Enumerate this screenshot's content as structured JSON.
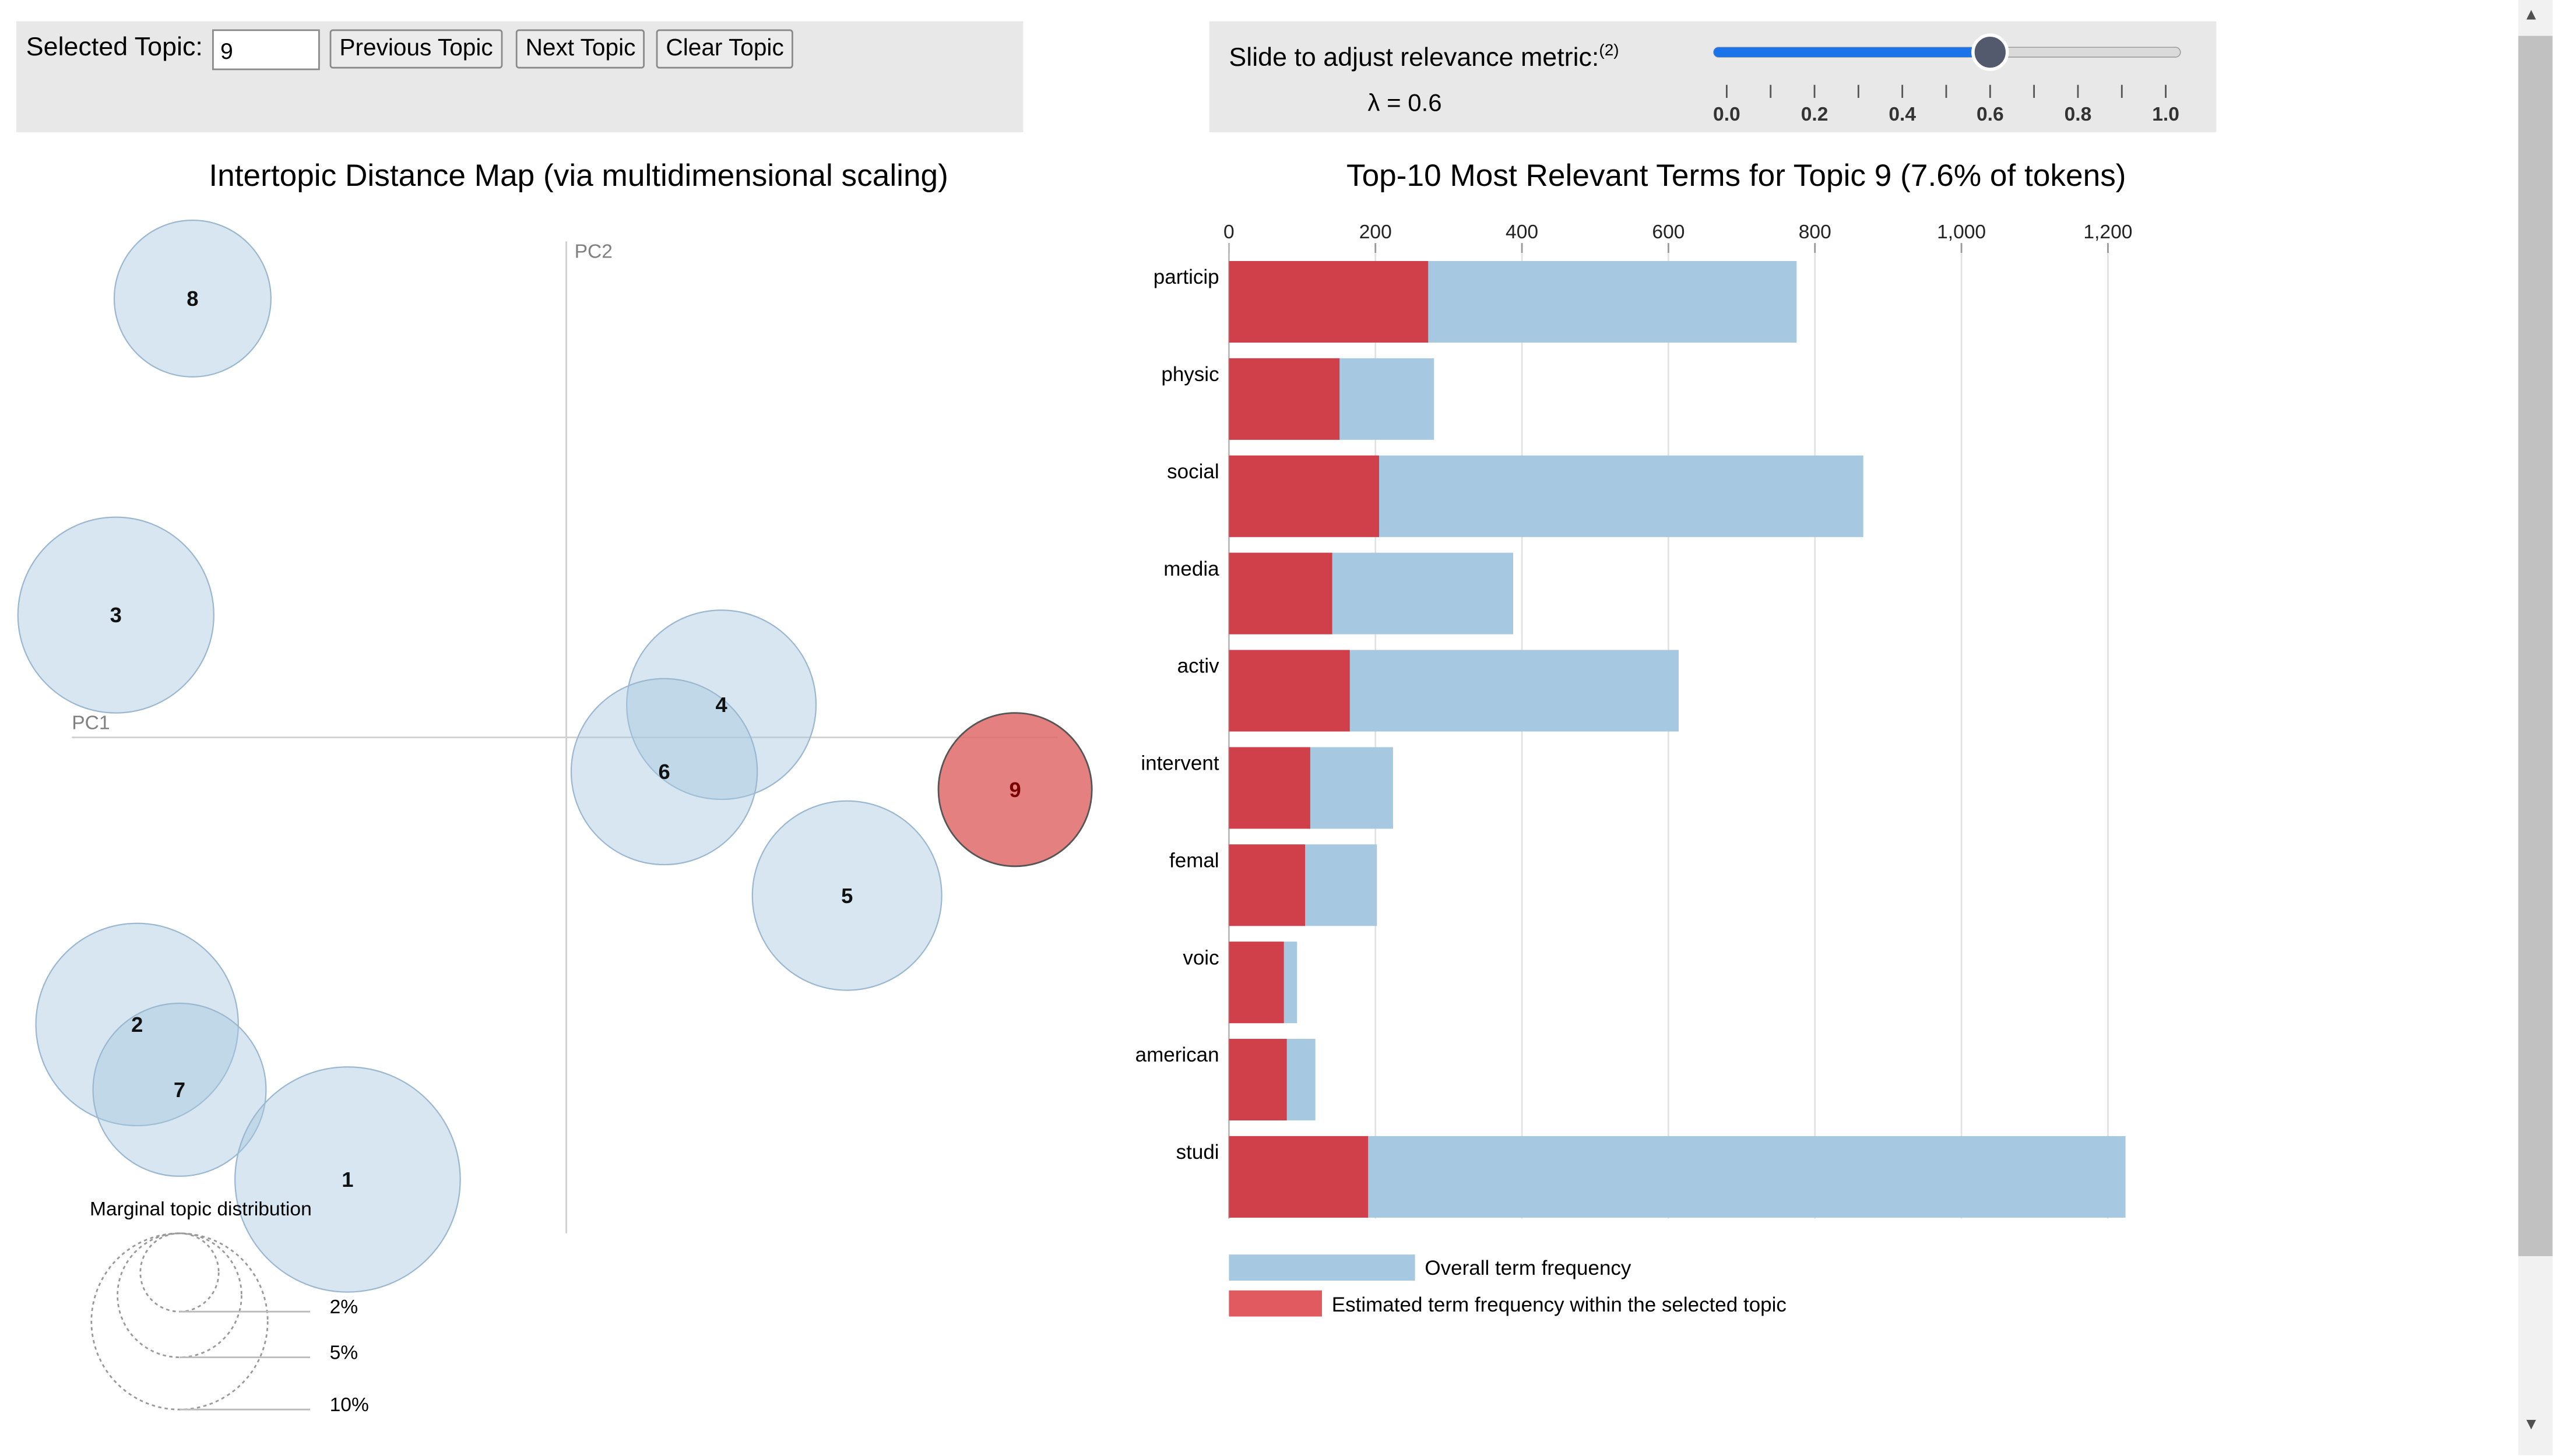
{
  "controls": {
    "selected_topic_label": "Selected Topic:",
    "selected_topic_value": "9",
    "previous_topic": "Previous Topic",
    "next_topic": "Next Topic",
    "clear_topic": "Clear Topic",
    "slider_label": "Slide to adjust relevance metric:",
    "slider_footnote": "(2)",
    "lambda_text": "λ = 0.6",
    "lambda_value": 0.6,
    "slider_ticks": [
      "0.0",
      "0.2",
      "0.4",
      "0.6",
      "0.8",
      "1.0"
    ]
  },
  "intertopic": {
    "title": "Intertopic Distance Map (via multidimensional scaling)",
    "pc1_label": "PC1",
    "pc2_label": "PC2",
    "marginal_label": "Marginal topic distribution",
    "legend_sizes": [
      "2%",
      "5%",
      "10%"
    ],
    "selected_topic": "9",
    "topics": [
      "8",
      "3",
      "4",
      "6",
      "9",
      "5",
      "2",
      "7",
      "1"
    ]
  },
  "chart_data": {
    "type": "bar",
    "title": "Top-10 Most Relevant Terms for Topic 9 (7.6% of tokens)",
    "categories": [
      "particip",
      "physic",
      "social",
      "media",
      "activ",
      "intervent",
      "femal",
      "voic",
      "american",
      "studi"
    ],
    "x_ticks": [
      "0",
      "200",
      "400",
      "600",
      "800",
      "1,000",
      "1,200"
    ],
    "xlim": [
      0,
      1270
    ],
    "grid": true,
    "series": [
      {
        "name": "Overall term frequency",
        "color": "#a6c8e0",
        "values": [
          775,
          280,
          866,
          388,
          614,
          224,
          202,
          93,
          118,
          1224
        ]
      },
      {
        "name": "Estimated term frequency within the selected topic",
        "color": "#d0404a",
        "values": [
          272,
          151,
          205,
          141,
          165,
          111,
          104,
          75,
          79,
          190
        ]
      }
    ],
    "legend": [
      "Overall term frequency",
      "Estimated term frequency within the selected topic"
    ]
  },
  "colors": {
    "bubble": "#c7dcec",
    "selected_bubble": "#e06a6a",
    "bar_overall": "#a6c8e0",
    "bar_topic": "#d0404a",
    "slider_accent": "#1a73e8"
  }
}
